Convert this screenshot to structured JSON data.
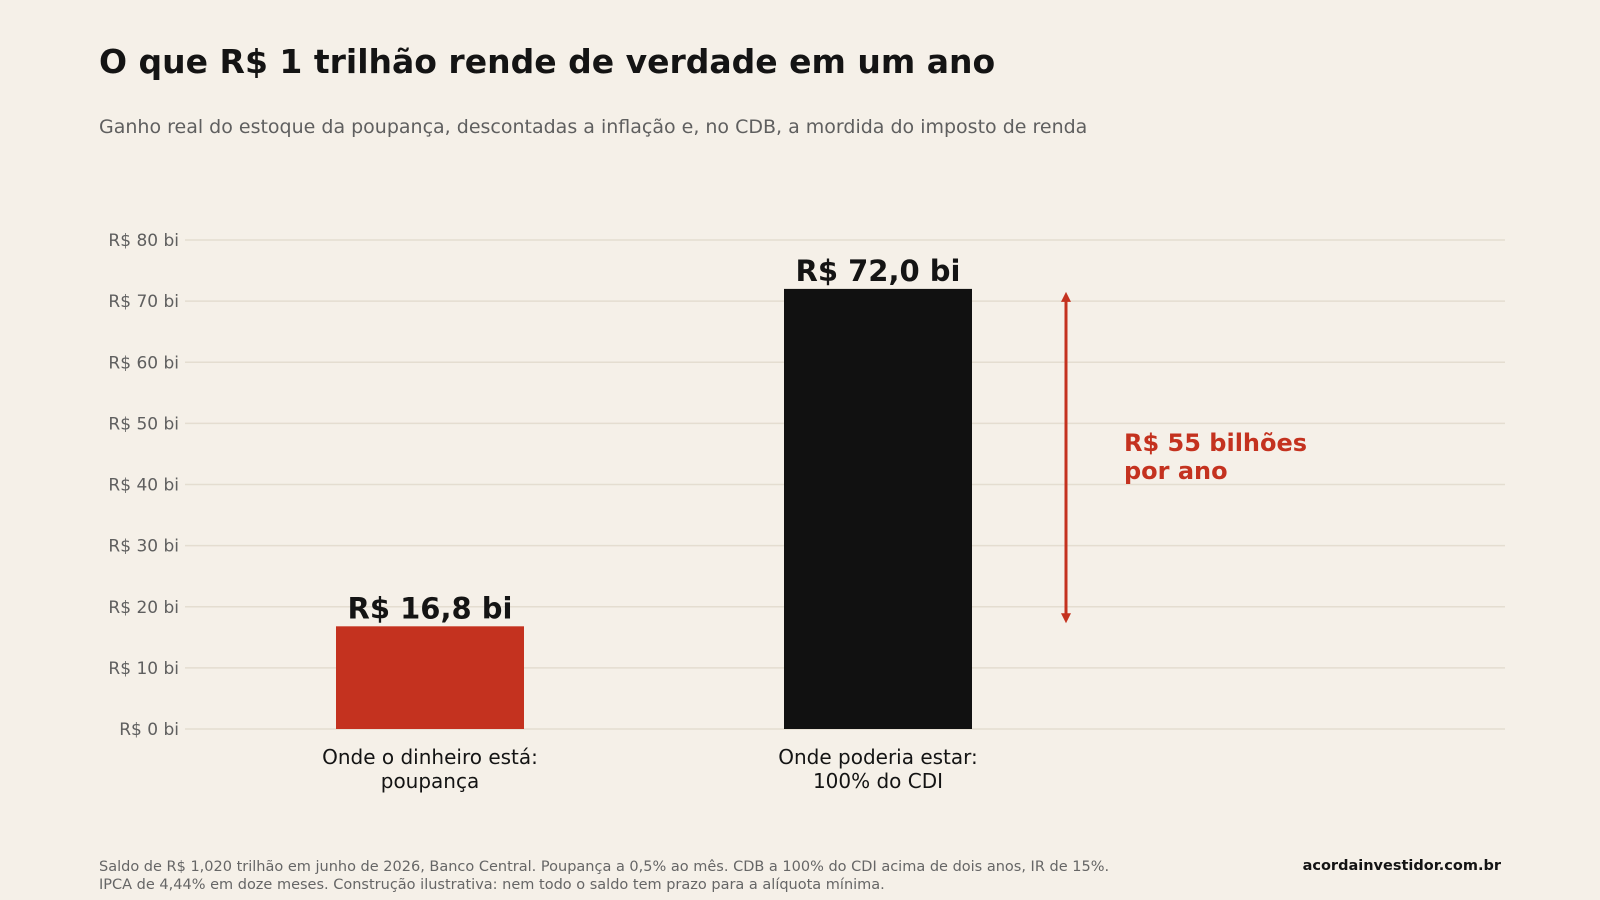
{
  "title": "O que R$ 1 trilhão rende de verdade em um ano",
  "subtitle": "Ganho real do estoque da poupança, descontadas a inflação e, no CDB, a mordida do imposto de renda",
  "footnote": {
    "line1": "Saldo de R$ 1,020 trilhão em junho de 2026, Banco Central. Poupança a 0,5% ao mês. CDB a 100% do CDI acima de dois anos, IR de 15%.",
    "line2": "IPCA de 4,44% em doze meses. Construção ilustrativa: nem todo o saldo tem prazo para a alíquota mínima."
  },
  "source": "acordainvestidor.com.br",
  "colors": {
    "background": "#f5f0e8",
    "poupanca": "#c4321f",
    "cdi": "#111111",
    "annotation": "#c4321f",
    "grid": "#e4ddd0"
  },
  "chart_data": {
    "type": "bar",
    "categories": [
      [
        "Onde o dinheiro está:",
        "poupança"
      ],
      [
        "Onde poderia estar:",
        "100% do CDI"
      ]
    ],
    "values": [
      16.8,
      72.0
    ],
    "value_labels": [
      "R$ 16,8 bi",
      "R$ 72,0 bi"
    ],
    "bar_colors": [
      "#c4321f",
      "#111111"
    ],
    "ylim": [
      0,
      80
    ],
    "yticks": [
      0,
      10,
      20,
      30,
      40,
      50,
      60,
      70,
      80
    ],
    "ytick_labels": [
      "R$ 0 bi",
      "R$ 10 bi",
      "R$ 20 bi",
      "R$ 30 bi",
      "R$ 40 bi",
      "R$ 50 bi",
      "R$ 60 bi",
      "R$ 70 bi",
      "R$ 80 bi"
    ],
    "grid": true,
    "annotation": {
      "from": 16.8,
      "to": 72.0,
      "lines": [
        "R$ 55 bilhões",
        "por ano"
      ]
    }
  }
}
